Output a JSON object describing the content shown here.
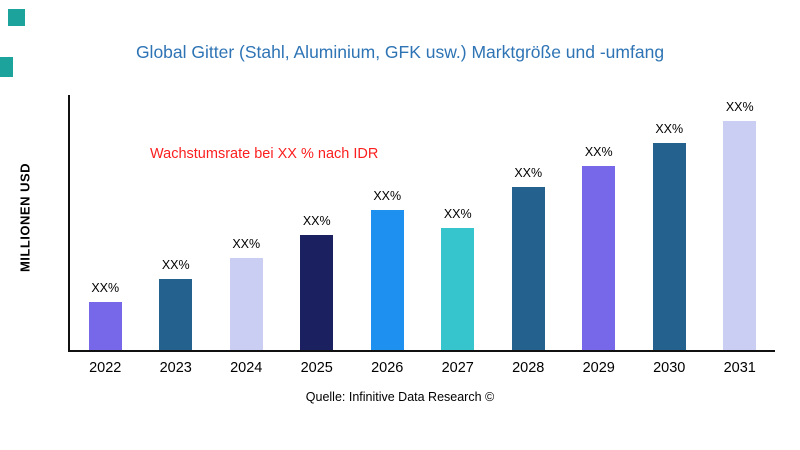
{
  "page": {
    "title": "Global Gitter (Stahl, Aluminium, GFK usw.) Marktgröße und -umfang",
    "title_color": "#2e74b5",
    "annotation": "Wachstumsrate bei XX % nach IDR",
    "annotation_color": "#fb1f1f",
    "ylabel": "MILLIONEN USD",
    "source": "Quelle: Infinitive Data Research ©",
    "accent_square_color": "#1ba39c",
    "axis_color": "#111111"
  },
  "chart_data": {
    "type": "bar",
    "title": "Global Gitter (Stahl, Aluminium, GFK usw.) Marktgröße und -umfang",
    "xlabel": "",
    "ylabel": "MILLIONEN USD",
    "categories": [
      "2022",
      "2023",
      "2024",
      "2025",
      "2026",
      "2027",
      "2028",
      "2029",
      "2030",
      "2031"
    ],
    "values": [
      19,
      28,
      36,
      45,
      55,
      48,
      64,
      72,
      81,
      90
    ],
    "bar_labels": [
      "XX%",
      "XX%",
      "XX%",
      "XX%",
      "XX%",
      "XX%",
      "XX%",
      "XX%",
      "XX%",
      "XX%"
    ],
    "bar_colors": [
      "#7668e8",
      "#25618f",
      "#c9cef2",
      "#1b2060",
      "#1e90f0",
      "#36c5cd",
      "#25618f",
      "#7668e8",
      "#25618f",
      "#c9cef2"
    ],
    "ylim": [
      0,
      100
    ],
    "grid": false,
    "legend": "none",
    "annotation": "Wachstumsrate bei XX % nach IDR",
    "source": "Quelle: Infinitive Data Research ©"
  }
}
